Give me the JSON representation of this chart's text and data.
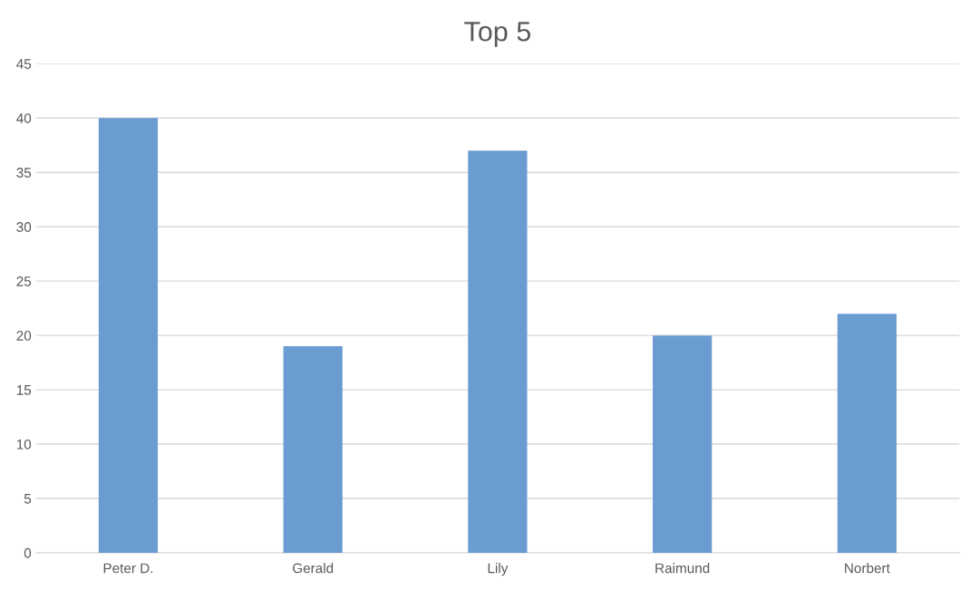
{
  "chart_data": {
    "type": "bar",
    "title": "Top 5",
    "categories": [
      "Peter D.",
      "Gerald",
      "Lily",
      "Raimund",
      "Norbert"
    ],
    "values": [
      40,
      19,
      37,
      20,
      22
    ],
    "color": "#6a9bd1",
    "ylim": [
      0,
      45
    ],
    "yticks": [
      0,
      5,
      10,
      15,
      20,
      25,
      30,
      35,
      40,
      45
    ],
    "grid": "y",
    "legend": false
  }
}
